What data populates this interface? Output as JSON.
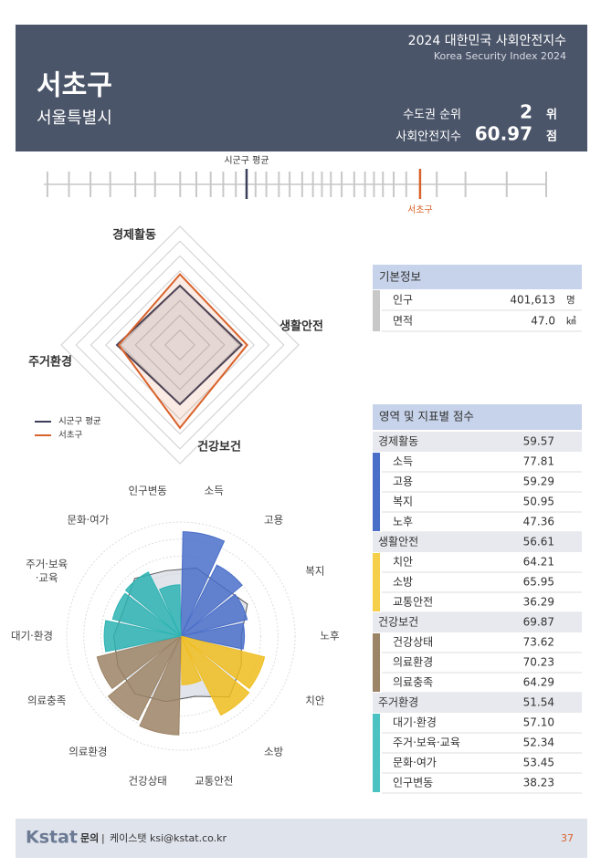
{
  "header": {
    "title": "2024 대한민국 사회안전지수",
    "subtitle": "Korea Security Index 2024",
    "district": "서초구",
    "city": "서울특별시",
    "rank_label": "수도권 순위",
    "rank": 2,
    "rank_unit": "위",
    "index_label": "사회안전지수",
    "index": 60.97,
    "index_unit": "점"
  },
  "chart_data": [
    {
      "type": "strip",
      "xlim": [
        40,
        68
      ],
      "values": [
        40.2,
        41.4,
        42.6,
        43.7,
        45.1,
        46.2,
        47.6,
        48.5,
        49.3,
        50.0,
        50.7,
        51.8,
        52.4,
        53.1,
        53.7,
        54.4,
        55.0,
        55.5,
        56.0,
        56.6,
        57.3,
        57.9,
        58.4,
        58.9,
        59.5,
        60.2,
        61.9,
        63.5,
        65.8,
        68.0
      ],
      "color": "#c8c8c8",
      "average": {
        "label": "시군구 평균",
        "value": 51.3,
        "color": "#3b3f5c"
      },
      "highlight": {
        "label": "서초구",
        "value": 60.97,
        "color": "#d9622b"
      }
    },
    {
      "type": "radar",
      "categories": [
        "경제활동",
        "생활안전",
        "건강보건",
        "주거환경"
      ],
      "rlim": [
        0,
        100
      ],
      "series": [
        {
          "name": "시군구 평균",
          "color": "#3b3f5c",
          "values": [
            50,
            52,
            50,
            53
          ]
        },
        {
          "name": "서초구",
          "color": "#d9622b",
          "values": [
            59.57,
            56.61,
            69.87,
            51.54
          ]
        }
      ]
    },
    {
      "type": "polar-bar",
      "rlim": [
        0,
        85
      ],
      "categories": [
        "소득",
        "고용",
        "복지",
        "노후",
        "치안",
        "소방",
        "교통안전",
        "건강상태",
        "의료환경",
        "의료충족",
        "대기·환경",
        "주거·보육·교육",
        "문화·여가",
        "인구변동"
      ],
      "values": [
        77.81,
        59.29,
        50.95,
        47.36,
        64.21,
        65.95,
        36.29,
        73.62,
        70.23,
        64.29,
        57.1,
        52.34,
        53.45,
        38.23
      ],
      "colors": [
        "#4a6fc9",
        "#4a6fc9",
        "#4a6fc9",
        "#4a6fc9",
        "#f0bd1f",
        "#f0bd1f",
        "#f0bd1f",
        "#9c8466",
        "#9c8466",
        "#9c8466",
        "#2db3b3",
        "#2db3b3",
        "#2db3b3",
        "#2db3b3"
      ],
      "average_values": [
        52,
        48,
        55,
        45,
        50,
        58,
        46,
        50,
        55,
        52,
        50,
        47,
        55,
        50
      ],
      "average_color": "#cdd3de"
    }
  ],
  "basic_info": {
    "title": "기본정보",
    "rows": [
      [
        "인구",
        "401,613",
        "명"
      ],
      [
        "면적",
        "47.0",
        "㎢"
      ]
    ]
  },
  "scores": {
    "title": "영역 및 지표별 점수",
    "domains": [
      {
        "name": "경제활동",
        "value": "59.57",
        "color": "#4a6fc9",
        "items": [
          [
            "소득",
            "77.81"
          ],
          [
            "고용",
            "59.29"
          ],
          [
            "복지",
            "50.95"
          ],
          [
            "노후",
            "47.36"
          ]
        ]
      },
      {
        "name": "생활안전",
        "value": "56.61",
        "color": "#f5cf4a",
        "items": [
          [
            "치안",
            "64.21"
          ],
          [
            "소방",
            "65.95"
          ],
          [
            "교통안전",
            "36.29"
          ]
        ]
      },
      {
        "name": "건강보건",
        "value": "69.87",
        "color": "#9c8466",
        "items": [
          [
            "건강상태",
            "73.62"
          ],
          [
            "의료환경",
            "70.23"
          ],
          [
            "의료충족",
            "64.29"
          ]
        ]
      },
      {
        "name": "주거환경",
        "value": "51.54",
        "color": "#4cc3c3",
        "items": [
          [
            "대기·환경",
            "57.10"
          ],
          [
            "주거·보육·교육",
            "52.34"
          ],
          [
            "문화·여가",
            "53.45"
          ],
          [
            "인구변동",
            "38.23"
          ]
        ]
      }
    ]
  },
  "footer": {
    "logo": "Kstat",
    "contact_label": "문의",
    "contact": "케이스탯 ksi@kstat.co.kr",
    "page": "37"
  }
}
